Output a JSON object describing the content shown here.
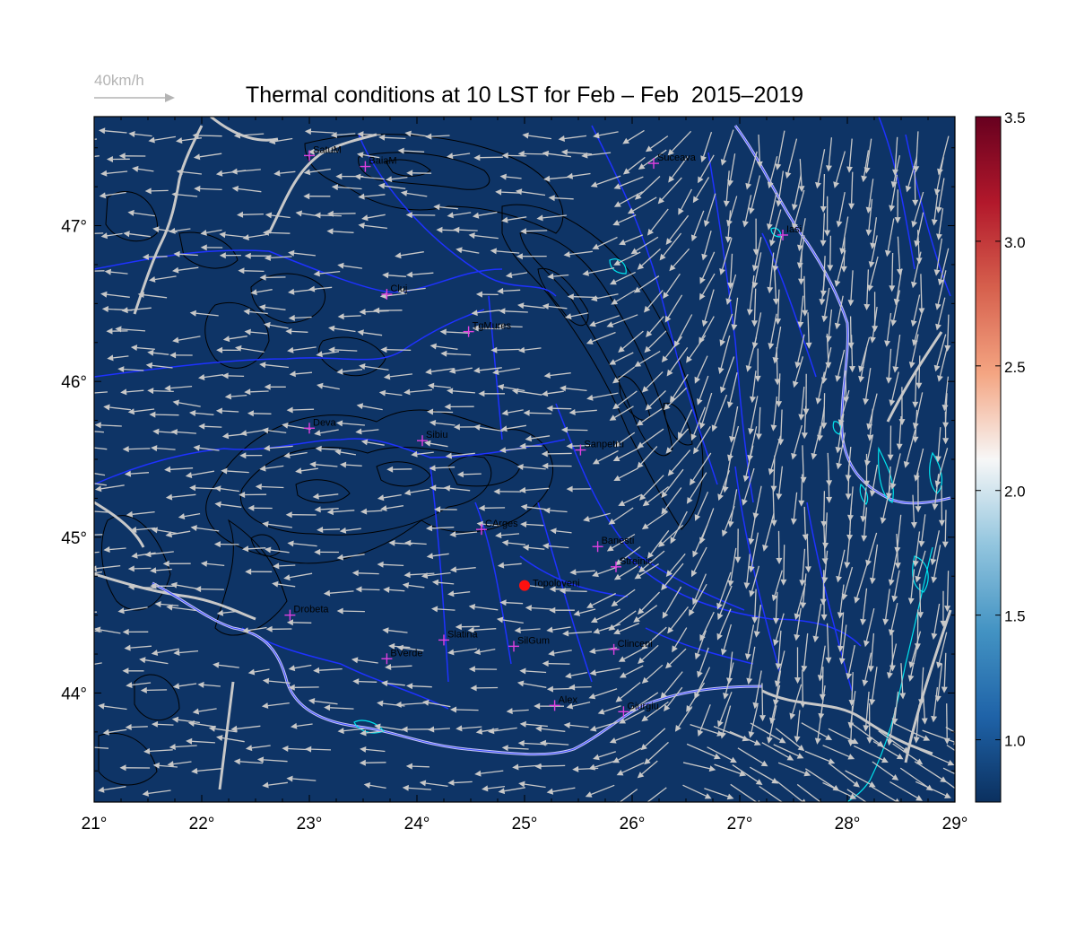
{
  "title": "Thermal conditions at 10 LST for Feb – Feb  2015–2019",
  "reference_vector": {
    "label": "40km/h",
    "speed_kmh": 40,
    "color": "#b4b4b4"
  },
  "map": {
    "lon_range": [
      21,
      29.0
    ],
    "lat_range": [
      43.3,
      47.7
    ],
    "x_ticks": [
      "21°",
      "22°",
      "23°",
      "24°",
      "25°",
      "26°",
      "27°",
      "28°",
      "29°"
    ],
    "x_tick_values": [
      21,
      22,
      23,
      24,
      25,
      26,
      27,
      28,
      29
    ],
    "y_ticks": [
      "44°",
      "45°",
      "46°",
      "47°"
    ],
    "y_tick_values": [
      44,
      45,
      46,
      47
    ],
    "background_color": "#0e3466",
    "contour_color": "#000000",
    "river_color": "#1e32ff",
    "border_color": "#c8c8c8",
    "lake_color": "#00e5ee",
    "station_color": "#e040e0",
    "highlight_color": "#ff1010",
    "wind_arrow_color": "#c8c8c8"
  },
  "stations": [
    {
      "name": "SatuM",
      "lon": 23.0,
      "lat": 47.45
    },
    {
      "name": "BaiaM",
      "lon": 23.52,
      "lat": 47.38
    },
    {
      "name": "Suceava",
      "lon": 26.2,
      "lat": 47.4
    },
    {
      "name": "Iasi",
      "lon": 27.4,
      "lat": 46.94
    },
    {
      "name": "Cluj",
      "lon": 23.72,
      "lat": 46.56
    },
    {
      "name": "TgMures",
      "lon": 24.48,
      "lat": 46.32
    },
    {
      "name": "Deva",
      "lon": 23.0,
      "lat": 45.7
    },
    {
      "name": "Sibiu",
      "lon": 24.05,
      "lat": 45.62
    },
    {
      "name": "Sanpetru",
      "lon": 25.52,
      "lat": 45.56
    },
    {
      "name": "CArges",
      "lon": 24.6,
      "lat": 45.05
    },
    {
      "name": "Banesti",
      "lon": 25.68,
      "lat": 44.94
    },
    {
      "name": "Strejnic",
      "lon": 25.85,
      "lat": 44.81
    },
    {
      "name": "Drobeta",
      "lon": 22.82,
      "lat": 44.5
    },
    {
      "name": "Slatina",
      "lon": 24.25,
      "lat": 44.34
    },
    {
      "name": "SilGum",
      "lon": 24.9,
      "lat": 44.3
    },
    {
      "name": "BVerde",
      "lon": 23.72,
      "lat": 44.22
    },
    {
      "name": "Clinceni",
      "lon": 25.83,
      "lat": 44.28
    },
    {
      "name": "Alex",
      "lon": 25.28,
      "lat": 43.92
    },
    {
      "name": "Giurgiu",
      "lon": 25.92,
      "lat": 43.88
    }
  ],
  "highlight_site": {
    "name": "Topoloveni",
    "lon": 25.0,
    "lat": 44.69
  },
  "colorbar": {
    "min": 0.75,
    "max": 3.5,
    "tick_labels": [
      "1.0",
      "1.5",
      "2.0",
      "2.5",
      "3.0",
      "3.5"
    ],
    "tick_values": [
      1.0,
      1.5,
      2.0,
      2.5,
      3.0,
      3.5
    ],
    "colormap": [
      "#0b305f",
      "#1f63a8",
      "#4393c3",
      "#92c5de",
      "#f7f7f7",
      "#f4a582",
      "#d6604d",
      "#b2182b",
      "#67001f"
    ]
  }
}
